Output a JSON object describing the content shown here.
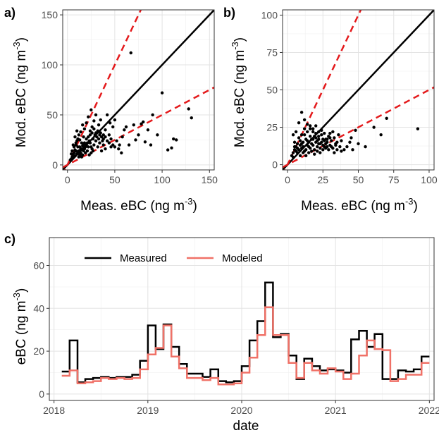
{
  "chart_data": [
    {
      "panel": "a)",
      "type": "scatter",
      "xlabel": "Meas. eBC (ng m",
      "ylabel": "Mod. eBC (ng m",
      "unit_sup": "-3",
      "unit_close": ")",
      "xlim": [
        -5,
        155
      ],
      "ylim": [
        -5,
        155
      ],
      "xticks": [
        0,
        50,
        100,
        150
      ],
      "yticks": [
        0,
        50,
        100,
        150
      ],
      "grid": true,
      "lines": [
        {
          "kind": "1:1",
          "slope": 1,
          "color": "#000000",
          "dashed": false
        },
        {
          "kind": "2:1",
          "slope": 2,
          "color": "#e41a1c",
          "dashed": true
        },
        {
          "kind": "1:2",
          "slope": 0.5,
          "color": "#e41a1c",
          "dashed": true
        }
      ],
      "points": [
        [
          67,
          112
        ],
        [
          100,
          72
        ],
        [
          128,
          56
        ],
        [
          131,
          47
        ],
        [
          78,
          41
        ],
        [
          80,
          43
        ],
        [
          70,
          40
        ],
        [
          62,
          38
        ],
        [
          75,
          30
        ],
        [
          90,
          50
        ],
        [
          85,
          35
        ],
        [
          95,
          30
        ],
        [
          110,
          17
        ],
        [
          106,
          15
        ],
        [
          115,
          25
        ],
        [
          112,
          26
        ],
        [
          88,
          20
        ],
        [
          82,
          23
        ],
        [
          60,
          35
        ],
        [
          58,
          28
        ],
        [
          55,
          20
        ],
        [
          50,
          45
        ],
        [
          48,
          38
        ],
        [
          45,
          42
        ],
        [
          42,
          50
        ],
        [
          40,
          35
        ],
        [
          38,
          30
        ],
        [
          35,
          45
        ],
        [
          33,
          40
        ],
        [
          30,
          50
        ],
        [
          28,
          44
        ],
        [
          26,
          38
        ],
        [
          25,
          55
        ],
        [
          24,
          30
        ],
        [
          22,
          48
        ],
        [
          20,
          42
        ],
        [
          18,
          36
        ],
        [
          17,
          28
        ],
        [
          16,
          40
        ],
        [
          15,
          22
        ],
        [
          14,
          33
        ],
        [
          13,
          25
        ],
        [
          12,
          30
        ],
        [
          11,
          18
        ],
        [
          10,
          24
        ],
        [
          9,
          20
        ],
        [
          8,
          15
        ],
        [
          7,
          12
        ],
        [
          6,
          10
        ],
        [
          5,
          8
        ],
        [
          4,
          6
        ],
        [
          3,
          5
        ],
        [
          6,
          20
        ],
        [
          8,
          28
        ],
        [
          10,
          34
        ],
        [
          12,
          14
        ],
        [
          14,
          12
        ],
        [
          16,
          10
        ],
        [
          18,
          16
        ],
        [
          20,
          20
        ],
        [
          22,
          18
        ],
        [
          24,
          22
        ],
        [
          26,
          16
        ],
        [
          28,
          20
        ],
        [
          30,
          24
        ],
        [
          32,
          18
        ],
        [
          34,
          22
        ],
        [
          36,
          14
        ],
        [
          38,
          20
        ],
        [
          40,
          16
        ],
        [
          44,
          22
        ],
        [
          46,
          18
        ],
        [
          52,
          24
        ],
        [
          54,
          16
        ],
        [
          57,
          12
        ],
        [
          65,
          20
        ],
        [
          72,
          25
        ],
        [
          9,
          14
        ],
        [
          11,
          12
        ],
        [
          13,
          18
        ],
        [
          15,
          16
        ],
        [
          17,
          20
        ],
        [
          19,
          12
        ],
        [
          21,
          14
        ],
        [
          23,
          10
        ],
        [
          25,
          12
        ],
        [
          27,
          26
        ],
        [
          29,
          30
        ],
        [
          31,
          28
        ],
        [
          33,
          26
        ],
        [
          35,
          32
        ],
        [
          37,
          24
        ],
        [
          7,
          18
        ],
        [
          5,
          14
        ],
        [
          4,
          11
        ],
        [
          6,
          8
        ],
        [
          8,
          9
        ],
        [
          10,
          11
        ],
        [
          12,
          8
        ],
        [
          14,
          16
        ],
        [
          16,
          19
        ],
        [
          18,
          22
        ],
        [
          20,
          26
        ],
        [
          22,
          28
        ],
        [
          24,
          34
        ],
        [
          26,
          32
        ],
        [
          28,
          36
        ],
        [
          30,
          32
        ],
        [
          32,
          34
        ],
        [
          34,
          30
        ],
        [
          36,
          28
        ],
        [
          38,
          26
        ],
        [
          40,
          28
        ],
        [
          42,
          24
        ],
        [
          44,
          30
        ],
        [
          46,
          26
        ],
        [
          48,
          20
        ],
        [
          50,
          18
        ],
        [
          9,
          22
        ],
        [
          11,
          26
        ],
        [
          13,
          10
        ],
        [
          15,
          8
        ],
        [
          17,
          14
        ],
        [
          19,
          18
        ],
        [
          21,
          22
        ],
        [
          23,
          24
        ],
        [
          25,
          18
        ],
        [
          27,
          14
        ]
      ]
    },
    {
      "panel": "b)",
      "type": "scatter",
      "xlabel": "Meas. eBC (ng m",
      "ylabel": "Mod. eBC (ng m",
      "unit_sup": "-3",
      "unit_close": ")",
      "xlim": [
        -3.5,
        103.5
      ],
      "ylim": [
        -3.5,
        103.5
      ],
      "xticks": [
        0,
        25,
        50,
        75,
        100
      ],
      "yticks": [
        0,
        25,
        50,
        75,
        100
      ],
      "grid": true,
      "lines": [
        {
          "kind": "1:1",
          "slope": 1,
          "color": "#000000",
          "dashed": false
        },
        {
          "kind": "2:1",
          "slope": 2,
          "color": "#e41a1c",
          "dashed": true
        },
        {
          "kind": "1:2",
          "slope": 0.5,
          "color": "#e41a1c",
          "dashed": true
        }
      ],
      "points": [
        [
          92,
          24
        ],
        [
          70,
          31
        ],
        [
          66,
          20
        ],
        [
          61,
          25
        ],
        [
          55,
          12
        ],
        [
          48,
          23
        ],
        [
          45,
          18
        ],
        [
          40,
          10
        ],
        [
          38,
          16
        ],
        [
          36,
          20
        ],
        [
          34,
          14
        ],
        [
          32,
          22
        ],
        [
          30,
          18
        ],
        [
          28,
          12
        ],
        [
          26,
          16
        ],
        [
          24,
          20
        ],
        [
          22,
          14
        ],
        [
          20,
          18
        ],
        [
          18,
          22
        ],
        [
          16,
          24
        ],
        [
          14,
          16
        ],
        [
          12,
          20
        ],
        [
          10,
          14
        ],
        [
          8,
          18
        ],
        [
          6,
          12
        ],
        [
          5,
          10
        ],
        [
          4,
          8
        ],
        [
          3,
          6
        ],
        [
          7,
          14
        ],
        [
          9,
          16
        ],
        [
          11,
          12
        ],
        [
          13,
          10
        ],
        [
          15,
          12
        ],
        [
          17,
          14
        ],
        [
          19,
          10
        ],
        [
          21,
          12
        ],
        [
          23,
          8
        ],
        [
          25,
          10
        ],
        [
          27,
          14
        ],
        [
          29,
          10
        ],
        [
          31,
          12
        ],
        [
          33,
          8
        ],
        [
          35,
          10
        ],
        [
          37,
          12
        ],
        [
          10,
          35
        ],
        [
          12,
          30
        ],
        [
          8,
          28
        ],
        [
          14,
          27
        ],
        [
          16,
          26
        ],
        [
          18,
          24
        ],
        [
          20,
          26
        ],
        [
          22,
          22
        ],
        [
          6,
          22
        ],
        [
          4,
          20
        ],
        [
          5,
          15
        ],
        [
          7,
          8
        ],
        [
          9,
          6
        ],
        [
          11,
          8
        ],
        [
          13,
          6
        ],
        [
          15,
          8
        ],
        [
          17,
          9
        ],
        [
          19,
          7
        ],
        [
          21,
          9
        ],
        [
          23,
          11
        ],
        [
          25,
          13
        ],
        [
          27,
          17
        ],
        [
          29,
          19
        ],
        [
          31,
          16
        ],
        [
          33,
          18
        ],
        [
          35,
          15
        ],
        [
          38,
          9
        ],
        [
          42,
          12
        ],
        [
          44,
          15
        ],
        [
          46,
          10
        ],
        [
          50,
          14
        ],
        [
          8,
          10
        ],
        [
          10,
          11
        ],
        [
          12,
          9
        ],
        [
          14,
          13
        ],
        [
          16,
          11
        ],
        [
          18,
          13
        ],
        [
          20,
          15
        ],
        [
          22,
          17
        ],
        [
          24,
          15
        ],
        [
          26,
          12
        ],
        [
          28,
          15
        ],
        [
          30,
          13
        ],
        [
          32,
          11
        ],
        [
          34,
          13
        ],
        [
          6,
          9
        ],
        [
          4,
          5
        ],
        [
          10,
          20
        ],
        [
          12,
          24
        ],
        [
          14,
          22
        ],
        [
          16,
          19
        ],
        [
          18,
          17
        ],
        [
          20,
          21
        ],
        [
          22,
          19
        ],
        [
          24,
          23
        ],
        [
          26,
          21
        ],
        [
          28,
          17
        ],
        [
          30,
          21
        ],
        [
          5,
          12
        ],
        [
          7,
          11
        ],
        [
          9,
          13
        ],
        [
          11,
          15
        ],
        [
          13,
          17
        ],
        [
          15,
          15
        ],
        [
          17,
          17
        ],
        [
          19,
          19
        ],
        [
          21,
          16
        ],
        [
          23,
          14
        ],
        [
          25,
          17
        ],
        [
          27,
          11
        ]
      ]
    },
    {
      "panel": "c)",
      "type": "line",
      "step": true,
      "xlabel": "date",
      "ylabel": "eBC (ng m",
      "unit_sup": "-3",
      "unit_close": ")",
      "xlim": [
        2017.95,
        2022.05
      ],
      "ylim": [
        -3,
        73
      ],
      "xticks": [
        2018,
        2019,
        2020,
        2021,
        2022
      ],
      "yticks": [
        0,
        20,
        40,
        60
      ],
      "grid": true,
      "legend": "top-left",
      "x": [
        2018.0,
        2018.083,
        2018.167,
        2018.25,
        2018.333,
        2018.417,
        2018.5,
        2018.583,
        2018.667,
        2018.75,
        2018.833,
        2018.917,
        2019.0,
        2019.083,
        2019.167,
        2019.25,
        2019.333,
        2019.417,
        2019.5,
        2019.583,
        2019.667,
        2019.75,
        2019.833,
        2019.917,
        2020.0,
        2020.083,
        2020.167,
        2020.25,
        2020.333,
        2020.417,
        2020.5,
        2020.583,
        2020.667,
        2020.75,
        2020.833,
        2020.917,
        2021.0,
        2021.083,
        2021.167,
        2021.25,
        2021.333,
        2021.417,
        2021.5,
        2021.583,
        2021.667,
        2021.75,
        2021.833,
        2021.917
      ],
      "series": [
        {
          "name": "Measured",
          "color": "#000000",
          "values": [
            null,
            10.5,
            25,
            5.5,
            7,
            7.5,
            8,
            7.5,
            8,
            8,
            9,
            15.5,
            32,
            21,
            32.5,
            22,
            14,
            9.5,
            9.5,
            8,
            11.5,
            6,
            5.5,
            6,
            13,
            25,
            34,
            52,
            26.5,
            28,
            18,
            7,
            16.5,
            13,
            11,
            11.5,
            11,
            10,
            25.5,
            29.5,
            22,
            28,
            7,
            7,
            11,
            10.5,
            11.5,
            17.5
          ]
        },
        {
          "name": "Modeled",
          "color": "#f07167",
          "values": [
            null,
            8.5,
            11,
            5,
            5.5,
            6,
            7.5,
            7,
            7.5,
            7,
            7.5,
            11.5,
            18.5,
            21.5,
            32,
            17.5,
            12,
            7.5,
            7.5,
            6.5,
            7.5,
            4.5,
            4.5,
            5,
            10,
            17,
            27.5,
            40.5,
            27.5,
            27.5,
            14.5,
            7.5,
            14.5,
            11,
            9.5,
            12,
            10.5,
            7,
            9.5,
            18,
            25,
            21,
            20.5,
            6,
            7,
            9,
            9,
            14.5
          ]
        }
      ]
    }
  ]
}
